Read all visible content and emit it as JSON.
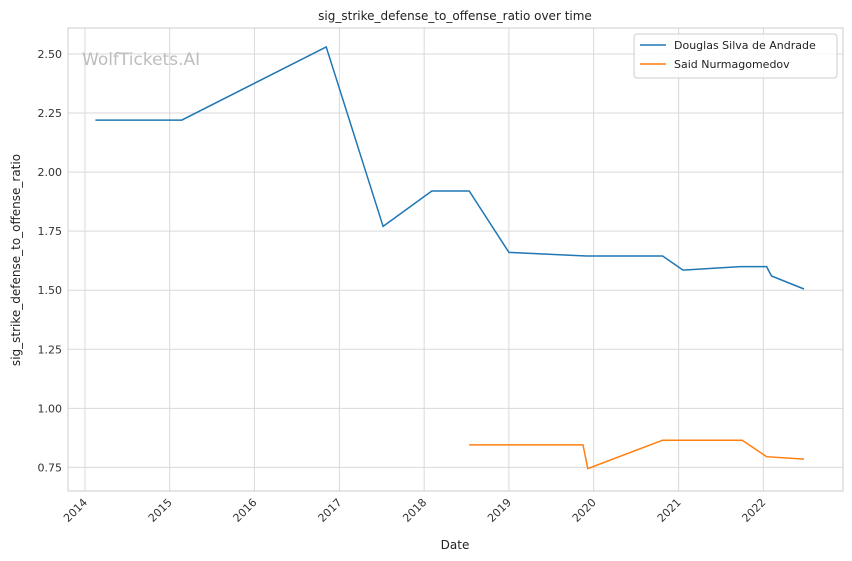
{
  "chart_data": {
    "type": "line",
    "title": "sig_strike_defense_to_offense_ratio over time",
    "xlabel": "Date",
    "ylabel": "sig_strike_defense_to_offense_ratio",
    "watermark": "WolfTickets.AI",
    "x_ticks": [
      "2014",
      "2015",
      "2016",
      "2017",
      "2018",
      "2019",
      "2020",
      "2021",
      "2022"
    ],
    "y_ticks": [
      "0.75",
      "1.00",
      "1.25",
      "1.50",
      "1.75",
      "2.00",
      "2.25",
      "2.50"
    ],
    "xlim": [
      "2013-10-20",
      "2022-12-10"
    ],
    "ylim": [
      0.65,
      2.61
    ],
    "grid": true,
    "legend_position": "top-right",
    "series": [
      {
        "name": "Douglas Silva de Andrade",
        "color": "#1f77b4",
        "points": [
          {
            "x": "2014-02-15",
            "y": 2.22
          },
          {
            "x": "2015-02-22",
            "y": 2.22
          },
          {
            "x": "2016-11-05",
            "y": 2.53
          },
          {
            "x": "2017-07-08",
            "y": 1.77
          },
          {
            "x": "2018-02-03",
            "y": 1.92
          },
          {
            "x": "2018-07-14",
            "y": 1.92
          },
          {
            "x": "2019-01-01",
            "y": 1.66
          },
          {
            "x": "2019-12-01",
            "y": 1.645
          },
          {
            "x": "2020-10-24",
            "y": 1.645
          },
          {
            "x": "2021-01-20",
            "y": 1.585
          },
          {
            "x": "2021-09-25",
            "y": 1.6
          },
          {
            "x": "2022-01-15",
            "y": 1.6
          },
          {
            "x": "2022-02-05",
            "y": 1.56
          },
          {
            "x": "2022-06-25",
            "y": 1.505
          }
        ]
      },
      {
        "name": "Said Nurmagomedov",
        "color": "#ff7f0e",
        "points": [
          {
            "x": "2018-07-14",
            "y": 0.845
          },
          {
            "x": "2019-11-16",
            "y": 0.845
          },
          {
            "x": "2019-12-07",
            "y": 0.745
          },
          {
            "x": "2020-10-24",
            "y": 0.865
          },
          {
            "x": "2021-10-02",
            "y": 0.865
          },
          {
            "x": "2022-01-15",
            "y": 0.795
          },
          {
            "x": "2022-06-25",
            "y": 0.785
          }
        ]
      }
    ]
  }
}
